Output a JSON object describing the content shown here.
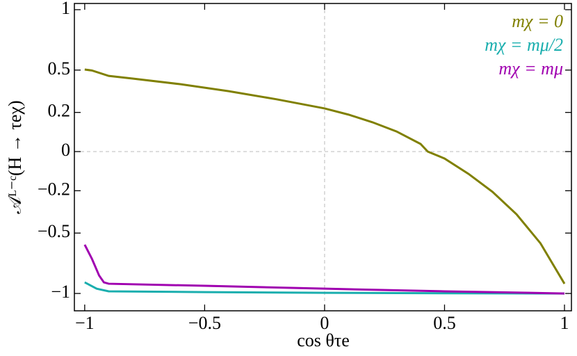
{
  "chart_data": {
    "type": "line",
    "x_label": "cos θτe",
    "y_label": "𝒜ᴸ⁻ᶜ(H → τeχ)",
    "xlim": [
      -1.043,
      1.029
    ],
    "ylim": [
      -1.155,
      1.055
    ],
    "yscale": "power",
    "yscale_exponent": 0.8,
    "xticks": [
      {
        "value": -1,
        "label": "−1"
      },
      {
        "value": -0.5,
        "label": "−0.5"
      },
      0,
      0.5,
      1
    ],
    "yticks": [
      {
        "value": -1,
        "label": "−1"
      },
      {
        "value": -0.5,
        "label": "−0.5"
      },
      {
        "value": -0.2,
        "label": "−0.2"
      },
      0,
      0.2,
      0.5,
      1
    ],
    "zero_lines": true,
    "legend": "upper right",
    "series": [
      {
        "name": "mχ = 0",
        "color": "#808000",
        "x": [
          -1,
          -0.97,
          -0.9,
          -0.8,
          -0.6,
          -0.4,
          -0.2,
          0,
          0.1,
          0.2,
          0.3,
          0.4,
          0.43,
          0.5,
          0.6,
          0.7,
          0.8,
          0.9,
          1
        ],
        "values": [
          0.504,
          0.497,
          0.456,
          0.436,
          0.394,
          0.344,
          0.287,
          0.226,
          0.186,
          0.139,
          0.087,
          0.026,
          0,
          -0.023,
          -0.099,
          -0.207,
          -0.36,
          -0.58,
          -0.915
        ]
      },
      {
        "name": "mχ = mμ/2",
        "color": "#1aaeae",
        "x": [
          -1,
          -0.95,
          -0.9,
          -0.5,
          0,
          0.5,
          1
        ],
        "values": [
          -0.903,
          -0.958,
          -0.981,
          -0.988,
          -0.994,
          -0.998,
          -1.0
        ]
      },
      {
        "name": "mχ = mμ",
        "color": "#a000b0",
        "x": [
          -1,
          -0.97,
          -0.94,
          -0.92,
          -0.9,
          -0.5,
          0,
          0.5,
          1
        ],
        "values": [
          -0.591,
          -0.704,
          -0.844,
          -0.903,
          -0.915,
          -0.933,
          -0.958,
          -0.981,
          -1.0
        ]
      }
    ]
  }
}
